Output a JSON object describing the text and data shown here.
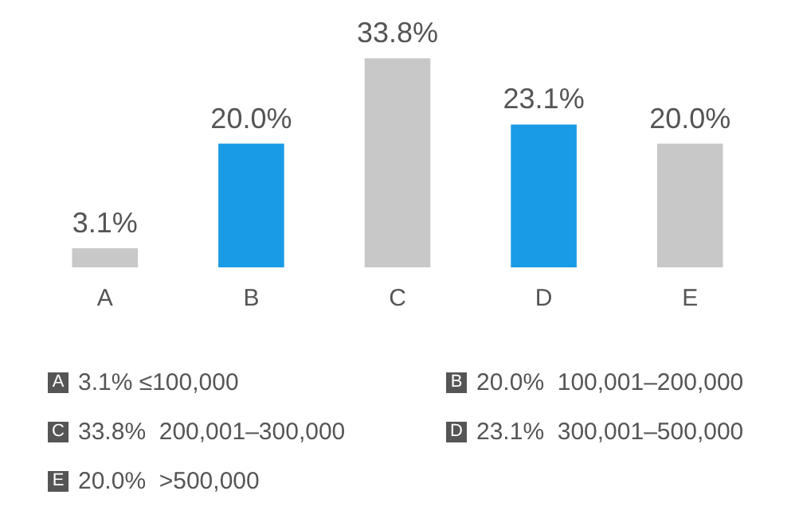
{
  "chart_data": {
    "type": "bar",
    "categories": [
      "A",
      "B",
      "C",
      "D",
      "E"
    ],
    "values": [
      3.1,
      20.0,
      33.8,
      23.1,
      20.0
    ],
    "colors": [
      "#c8c8c8",
      "#1a9be6",
      "#c8c8c8",
      "#1a9be6",
      "#c8c8c8"
    ],
    "value_labels": [
      "3.1%",
      "20.0%",
      "33.8%",
      "23.1%",
      "20.0%"
    ],
    "grid": false,
    "legend": false,
    "annotations": [
      "A 3.1% ≤100,000",
      "B 20.0%  100,001–200,000",
      "C 33.8%  200,001–300,000",
      "D 23.1%  300,001–500,000",
      "E 20.0%  >500,000"
    ]
  }
}
